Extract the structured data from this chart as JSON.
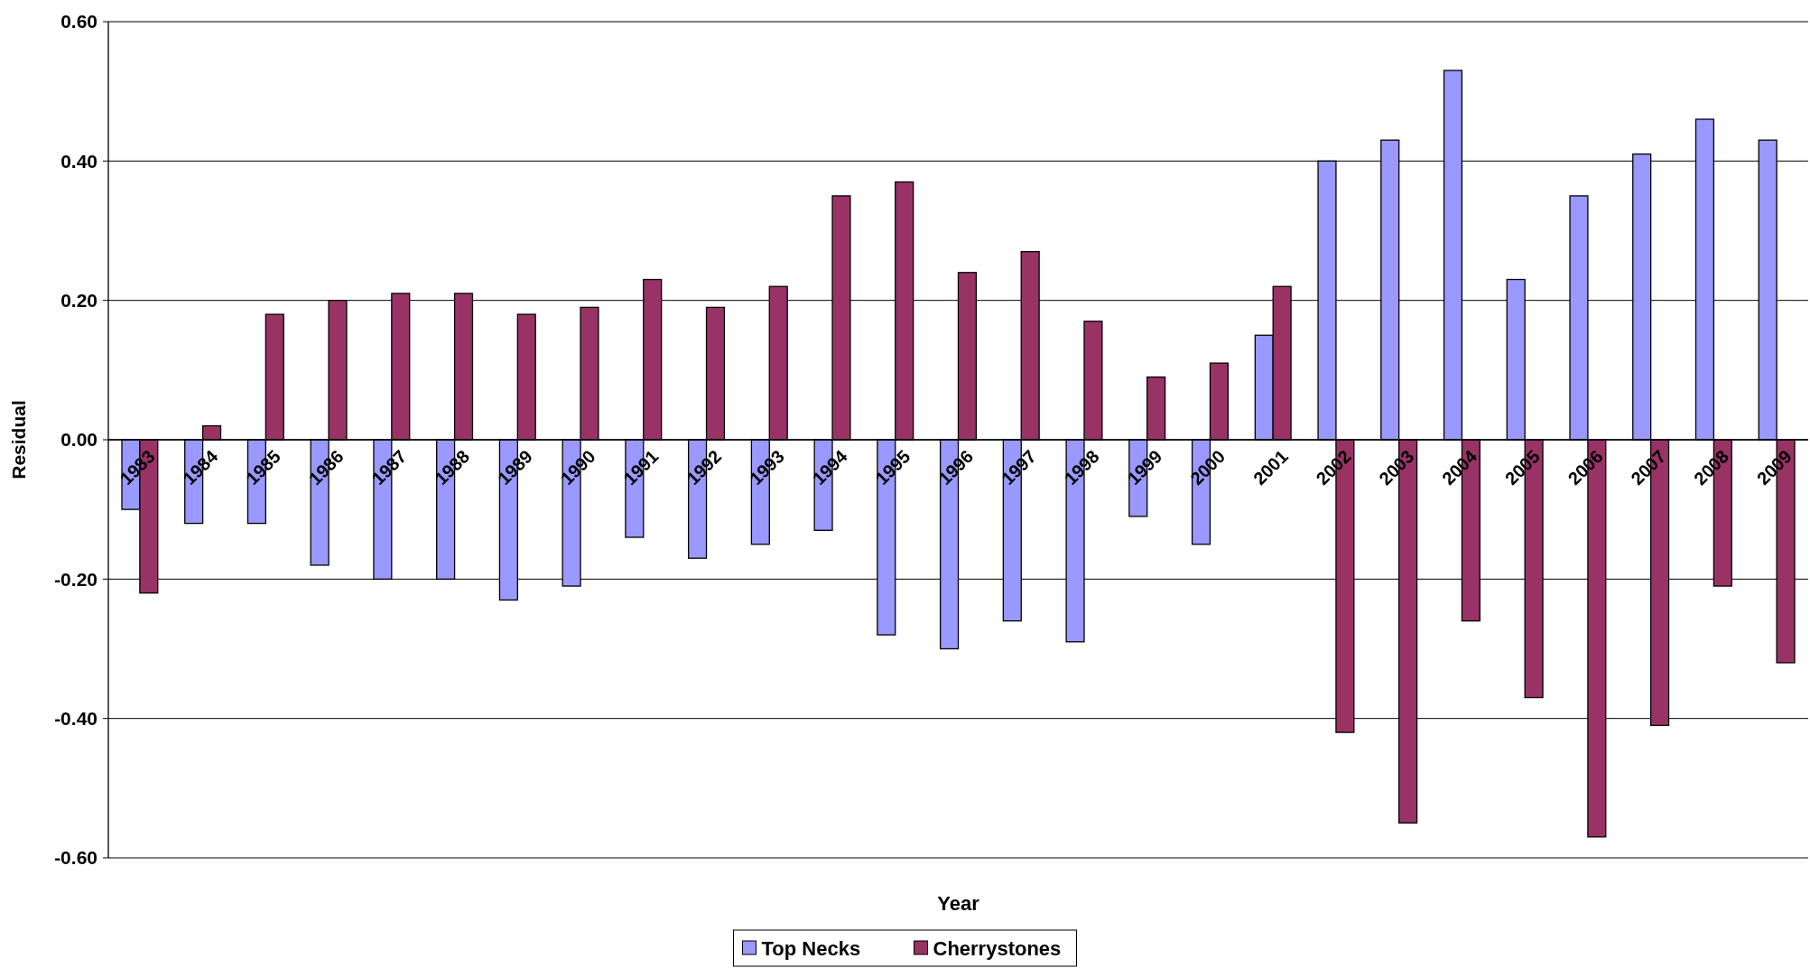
{
  "chart_data": {
    "type": "bar",
    "xlabel": "Year",
    "ylabel": "Residual",
    "categories": [
      "1983",
      "1984",
      "1985",
      "1986",
      "1987",
      "1988",
      "1989",
      "1990",
      "1991",
      "1992",
      "1993",
      "1994",
      "1995",
      "1996",
      "1997",
      "1998",
      "1999",
      "2000",
      "2001",
      "2002",
      "2003",
      "2004",
      "2005",
      "2006",
      "2007",
      "2008",
      "2009"
    ],
    "series": [
      {
        "name": "Top Necks",
        "color": "#9999ff",
        "values": [
          -0.1,
          -0.12,
          -0.12,
          -0.18,
          -0.2,
          -0.2,
          -0.23,
          -0.21,
          -0.14,
          -0.17,
          -0.15,
          -0.13,
          -0.28,
          -0.3,
          -0.26,
          -0.29,
          -0.11,
          -0.15,
          0.15,
          0.4,
          0.43,
          0.53,
          0.23,
          0.35,
          0.41,
          0.46,
          0.43
        ]
      },
      {
        "name": "Cherrystones",
        "color": "#993366",
        "values": [
          -0.22,
          0.02,
          0.18,
          0.2,
          0.21,
          0.21,
          0.18,
          0.19,
          0.23,
          0.19,
          0.22,
          0.35,
          0.37,
          0.24,
          0.27,
          0.17,
          0.09,
          0.11,
          0.22,
          -0.42,
          -0.55,
          -0.26,
          -0.37,
          -0.57,
          -0.41,
          -0.21,
          -0.32
        ]
      }
    ],
    "ylim": [
      -0.6,
      0.6
    ],
    "yticks": [
      {
        "value": -0.6,
        "label": "-0.60"
      },
      {
        "value": -0.4,
        "label": "-0.40"
      },
      {
        "value": -0.2,
        "label": "-0.20"
      },
      {
        "value": 0,
        "label": "0.00"
      },
      {
        "value": 0.2,
        "label": "0.20"
      },
      {
        "value": 0.4,
        "label": "0.40"
      },
      {
        "value": 0.6,
        "label": "0.60"
      }
    ],
    "grid": "y",
    "legend": "bottom"
  }
}
